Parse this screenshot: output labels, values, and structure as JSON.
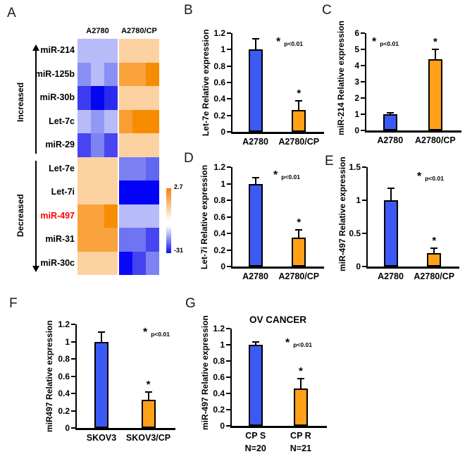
{
  "colors": {
    "bar_blue": "#3B5AF5",
    "bar_orange": "#FFA018",
    "axis": "#000000",
    "highlight_row_label": "#FF0000",
    "colorbar_top": "#F57F0A",
    "colorbar_mid": "#FFFFFF",
    "colorbar_bottom": "#1010F2"
  },
  "chart_data": [
    {
      "type": "heatmap",
      "panel": "A",
      "col_headers": [
        "A2780",
        "A2780/CP"
      ],
      "replicates_per_group": 3,
      "increased_label": "Increased",
      "decreased_label": "Decreased",
      "scale_max_label": "2.7",
      "scale_min_label": "-31",
      "scale_colors": [
        "#F57F0A",
        "#FFFFFF",
        "#1010F2"
      ],
      "rows": [
        {
          "name": "miR-214",
          "direction": "increased",
          "name_color": "#000000",
          "cells": [
            "#B7BBF7",
            "#B7BBF7",
            "#B7BBF7",
            "#FCD2A2",
            "#FCD2A2",
            "#FCD2A2"
          ]
        },
        {
          "name": "miR-125b",
          "direction": "increased",
          "name_color": "#000000",
          "cells": [
            "#8A8FF5",
            "#B7BBF7",
            "#8A8FF5",
            "#FAA23C",
            "#FAA23C",
            "#F78C00"
          ]
        },
        {
          "name": "miR-30b",
          "direction": "increased",
          "name_color": "#000000",
          "cells": [
            "#3B3BF0",
            "#0505F0",
            "#2B2BF0",
            "#FCD2A2",
            "#FCD2A2",
            "#FCD2A2"
          ]
        },
        {
          "name": "Let-7c",
          "direction": "increased",
          "name_color": "#000000",
          "cells": [
            "#B7BBF7",
            "#9298F5",
            "#B7BBF7",
            "#FA9D32",
            "#F78C00",
            "#F78C00"
          ]
        },
        {
          "name": "miR-29",
          "direction": "increased",
          "name_color": "#000000",
          "cells": [
            "#4A45F0",
            "#7E83F3",
            "#4A45F0",
            "#FCD2A2",
            "#FCD2A2",
            "#FCD2A2"
          ]
        },
        {
          "name": "Let-7e",
          "direction": "decreased",
          "name_color": "#000000",
          "cells": [
            "#FCD2A2",
            "#FCD2A2",
            "#FCD2A2",
            "#7B80F3",
            "#7B80F3",
            "#6067F0"
          ]
        },
        {
          "name": "Let-7i",
          "direction": "decreased",
          "name_color": "#000000",
          "cells": [
            "#FCD2A2",
            "#FCD2A2",
            "#FCD2A2",
            "#0202F8",
            "#0202F8",
            "#0202F8"
          ]
        },
        {
          "name": "miR-497",
          "direction": "decreased",
          "name_color": "#FF0000",
          "cells": [
            "#FAA23C",
            "#FAA23C",
            "#F78D05",
            "#B7BBF7",
            "#B7BBF7",
            "#B7BBF7"
          ]
        },
        {
          "name": "miR-31",
          "direction": "decreased",
          "name_color": "#000000",
          "cells": [
            "#FAA23C",
            "#FAA23C",
            "#FAA23C",
            "#6E74F2",
            "#6E74F2",
            "#4645F2"
          ]
        },
        {
          "name": "miR-30c",
          "direction": "decreased",
          "name_color": "#000000",
          "cells": [
            "#FCD2A2",
            "#FCD2A2",
            "#FCD2A2",
            "#0909F8",
            "#4443F0",
            "#7E83F3"
          ]
        }
      ]
    },
    {
      "type": "bar",
      "panel": "B",
      "title": "",
      "ylabel": "Let-7e Relative expression",
      "categories": [
        [
          "A2780"
        ],
        [
          "A2780/CP"
        ]
      ],
      "values": [
        1.0,
        0.27
      ],
      "errors": [
        0.12,
        0.1
      ],
      "ylim": [
        0,
        1.2
      ],
      "yticks": [
        0,
        0.2,
        0.4,
        0.6,
        0.8,
        1,
        1.2
      ],
      "ytick_labels": [
        "0",
        "0.2",
        "0.4",
        "0.6",
        "0.8",
        "1",
        "1.2"
      ],
      "bar_colors": [
        "#3B5AF5",
        "#FFA018"
      ],
      "significant": [
        false,
        true
      ],
      "annotation_asterisk": "*",
      "annotation_text": "p<0.01",
      "grid": false,
      "legend": false
    },
    {
      "type": "bar",
      "panel": "C",
      "title": "",
      "ylabel": "miR-214 Relative expression",
      "categories": [
        [
          "A2780"
        ],
        [
          "A2780/CP"
        ]
      ],
      "values": [
        1.0,
        4.4
      ],
      "errors": [
        0.05,
        0.55
      ],
      "ylim": [
        0,
        6
      ],
      "yticks": [
        0,
        1,
        2,
        3,
        4,
        5,
        6
      ],
      "ytick_labels": [
        "0",
        "1",
        "2",
        "3",
        "4",
        "5",
        "6"
      ],
      "bar_colors": [
        "#3B5AF5",
        "#FFA018"
      ],
      "significant": [
        false,
        true
      ],
      "annotation_asterisk": "*",
      "annotation_text": "p<0.01",
      "grid": false,
      "legend": false
    },
    {
      "type": "bar",
      "panel": "D",
      "title": "",
      "ylabel": "Let-7i Relative expression",
      "categories": [
        [
          "A2780"
        ],
        [
          "A2780/CP"
        ]
      ],
      "values": [
        1.0,
        0.35
      ],
      "errors": [
        0.06,
        0.08
      ],
      "ylim": [
        0,
        1.2
      ],
      "yticks": [
        0,
        0.2,
        0.4,
        0.6,
        0.8,
        1,
        1.2
      ],
      "ytick_labels": [
        "0",
        "0.2",
        "0.4",
        "0.6",
        "0.8",
        "1",
        "1.2"
      ],
      "bar_colors": [
        "#3B5AF5",
        "#FFA018"
      ],
      "significant": [
        false,
        true
      ],
      "annotation_asterisk": "*",
      "annotation_text": "p<0.01",
      "grid": false,
      "legend": false
    },
    {
      "type": "bar",
      "panel": "E",
      "title": "",
      "ylabel": "miR-497 Relative expression",
      "categories": [
        [
          "A2780"
        ],
        [
          "A2780/CP"
        ]
      ],
      "values": [
        1.0,
        0.2
      ],
      "errors": [
        0.17,
        0.07
      ],
      "ylim": [
        0,
        1.5
      ],
      "yticks": [
        0,
        0.5,
        1,
        1.5
      ],
      "ytick_labels": [
        "0",
        "0.5",
        "1",
        "1.5"
      ],
      "bar_colors": [
        "#3B5AF5",
        "#FFA018"
      ],
      "significant": [
        false,
        true
      ],
      "annotation_asterisk": "*",
      "annotation_text": "p<0.01",
      "grid": false,
      "legend": false
    },
    {
      "type": "bar",
      "panel": "F",
      "title": "",
      "ylabel": "miR497 Relative expression",
      "categories": [
        [
          "SKOV3"
        ],
        [
          "SKOV3/CP"
        ]
      ],
      "values": [
        1.0,
        0.33
      ],
      "errors": [
        0.1,
        0.08
      ],
      "ylim": [
        0,
        1.2
      ],
      "yticks": [
        0,
        0.2,
        0.4,
        0.6,
        0.8,
        1,
        1.2
      ],
      "ytick_labels": [
        "0",
        "0.2",
        "0.4",
        "0.6",
        "0.8",
        "1",
        "1.2"
      ],
      "bar_colors": [
        "#3B5AF5",
        "#FFA018"
      ],
      "significant": [
        false,
        true
      ],
      "annotation_asterisk": "*",
      "annotation_text": "p<0.01",
      "grid": false,
      "legend": false
    },
    {
      "type": "bar",
      "panel": "G",
      "title": "OV CANCER",
      "ylabel": "miR-497 Relative expression",
      "categories": [
        [
          "CP S",
          "N=20"
        ],
        [
          "CP R",
          "N=21"
        ]
      ],
      "values": [
        1.0,
        0.46
      ],
      "errors": [
        0.03,
        0.11
      ],
      "ylim": [
        0,
        1.2
      ],
      "yticks": [
        0,
        0.2,
        0.4,
        0.6,
        0.8,
        1,
        1.2
      ],
      "ytick_labels": [
        "0",
        "0.2",
        "0.4",
        "0.6",
        "0.8",
        "1",
        "1.2"
      ],
      "bar_colors": [
        "#3B5AF5",
        "#FFA018"
      ],
      "significant": [
        false,
        true
      ],
      "annotation_asterisk": "*",
      "annotation_text": "p<0.01",
      "grid": false,
      "legend": false
    }
  ]
}
